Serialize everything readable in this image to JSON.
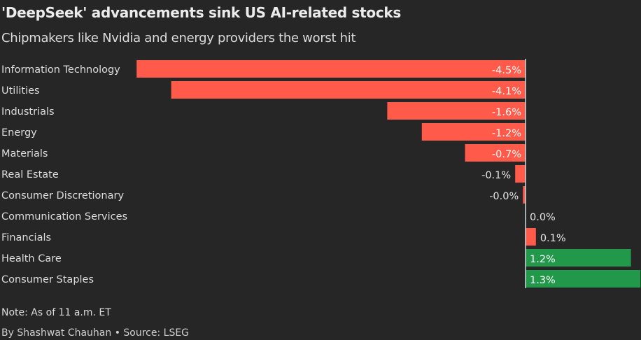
{
  "title": "'DeepSeek' advancements sink US AI-related stocks",
  "subtitle": "Chipmakers like Nvidia and energy providers the worst hit",
  "note": "Note: As of 11 a.m. ET",
  "source": "By Shashwat Chauhan • Source: LSEG",
  "colors": {
    "background": "#262626",
    "negative": "#ff5a4a",
    "positive": "#22994a",
    "financials": "#ff5a4a",
    "zero_line": "#cfd8dc"
  },
  "chart_data": {
    "type": "bar",
    "orientation": "horizontal",
    "categories": [
      "Information Technology",
      "Utilities",
      "Industrials",
      "Energy",
      "Materials",
      "Real Estate",
      "Consumer Discretionary",
      "Communication Services",
      "Financials",
      "Health Care",
      "Consumer Staples"
    ],
    "values": [
      -4.5,
      -4.1,
      -1.6,
      -1.2,
      -0.7,
      -0.12,
      -0.03,
      0.0,
      0.12,
      1.22,
      1.33
    ],
    "labels": [
      "-4.5%",
      "-4.1%",
      "-1.6%",
      "-1.2%",
      "-0.7%",
      "-0.1%",
      "-0.0%",
      "0.0%",
      "0.1%",
      "1.2%",
      "1.3%"
    ],
    "bar_colors": [
      "#ff5a4a",
      "#ff5a4a",
      "#ff5a4a",
      "#ff5a4a",
      "#ff5a4a",
      "#ff5a4a",
      "#ff5a4a",
      "#ff5a4a",
      "#ff5a4a",
      "#22994a",
      "#22994a"
    ],
    "xlim": [
      -4.5,
      1.33
    ],
    "grid": false,
    "legend": "none"
  }
}
